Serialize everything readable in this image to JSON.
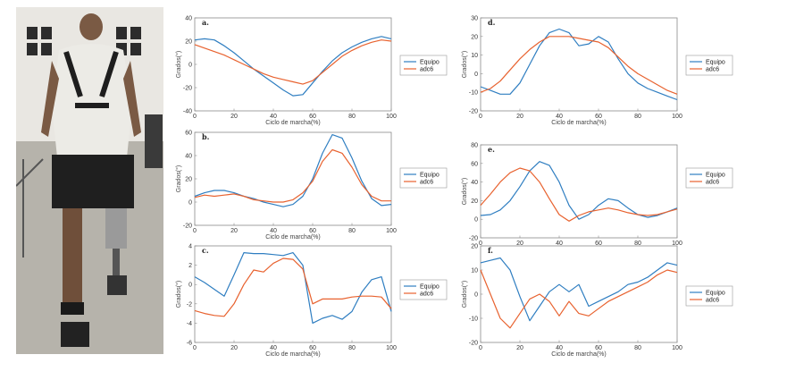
{
  "colors": {
    "equipo": "#2f7ec1",
    "adc6": "#e8622f",
    "axis": "#8a8a8a"
  },
  "photo": {
    "description_icon": "person-walking-with-prosthesis-photo"
  },
  "chart_data": [
    {
      "type": "line",
      "panel_label": "a.",
      "xlabel": "Ciclo de marcha(%)",
      "ylabel": "Grados(°)",
      "xlim": [
        0,
        100
      ],
      "ylim": [
        -40,
        40
      ],
      "xticks": [
        0,
        20,
        40,
        60,
        80,
        100
      ],
      "yticks": [
        -40,
        -20,
        0,
        20,
        40
      ],
      "legend": "right",
      "x": [
        0,
        5,
        10,
        15,
        20,
        25,
        30,
        35,
        40,
        45,
        50,
        55,
        60,
        65,
        70,
        75,
        80,
        85,
        90,
        95,
        100
      ],
      "series": [
        {
          "name": "Equipo",
          "values": [
            21,
            22,
            21,
            16,
            10,
            3,
            -4,
            -10,
            -16,
            -22,
            -27,
            -26,
            -16,
            -6,
            3,
            10,
            15,
            19,
            22,
            24,
            22
          ]
        },
        {
          "name": "adc6",
          "values": [
            17,
            14,
            11,
            8,
            4,
            0,
            -4,
            -8,
            -11,
            -13,
            -15,
            -17,
            -14,
            -7,
            0,
            7,
            12,
            16,
            19,
            21,
            20
          ]
        }
      ]
    },
    {
      "type": "line",
      "panel_label": "d.",
      "xlabel": "Ciclo de marcha(%)",
      "ylabel": "Grados(°)",
      "xlim": [
        0,
        100
      ],
      "ylim": [
        -20,
        30
      ],
      "xticks": [
        0,
        20,
        40,
        60,
        80,
        100
      ],
      "yticks": [
        -20,
        -10,
        0,
        10,
        20,
        30
      ],
      "legend": "right",
      "x": [
        0,
        5,
        10,
        15,
        20,
        25,
        30,
        35,
        40,
        45,
        50,
        55,
        60,
        65,
        70,
        75,
        80,
        85,
        90,
        95,
        100
      ],
      "series": [
        {
          "name": "Equipo",
          "values": [
            -7,
            -9,
            -11,
            -11,
            -5,
            5,
            15,
            22,
            24,
            22,
            15,
            16,
            20,
            17,
            8,
            0,
            -5,
            -8,
            -10,
            -12,
            -14
          ]
        },
        {
          "name": "adc6",
          "values": [
            -10,
            -8,
            -4,
            2,
            8,
            13,
            17,
            20,
            20,
            20,
            19,
            18,
            17,
            14,
            9,
            4,
            0,
            -3,
            -6,
            -9,
            -11
          ]
        }
      ]
    },
    {
      "type": "line",
      "panel_label": "b.",
      "xlabel": "Ciclo de marcha(%)",
      "ylabel": "Grados(°)",
      "xlim": [
        0,
        100
      ],
      "ylim": [
        -20,
        60
      ],
      "xticks": [
        0,
        20,
        40,
        60,
        80,
        100
      ],
      "yticks": [
        -20,
        0,
        20,
        40,
        60
      ],
      "legend": "right",
      "x": [
        0,
        5,
        10,
        15,
        20,
        25,
        30,
        35,
        40,
        45,
        50,
        55,
        60,
        65,
        70,
        75,
        80,
        85,
        90,
        95,
        100
      ],
      "series": [
        {
          "name": "Equipo",
          "values": [
            5,
            8,
            10,
            10,
            8,
            5,
            3,
            0,
            -2,
            -4,
            -2,
            5,
            20,
            42,
            58,
            55,
            38,
            18,
            3,
            -3,
            -2
          ]
        },
        {
          "name": "adc6",
          "values": [
            4,
            6,
            5,
            6,
            7,
            5,
            2,
            1,
            0,
            0,
            2,
            8,
            18,
            35,
            45,
            42,
            30,
            15,
            5,
            1,
            1
          ]
        }
      ]
    },
    {
      "type": "line",
      "panel_label": "e.",
      "xlabel": "Ciclo de marcha(%)",
      "ylabel": "Grados(°)",
      "xlim": [
        0,
        100
      ],
      "ylim": [
        -20,
        80
      ],
      "xticks": [
        0,
        20,
        40,
        60,
        80,
        100
      ],
      "yticks": [
        -20,
        0,
        20,
        40,
        60,
        80
      ],
      "legend": "right",
      "x": [
        0,
        5,
        10,
        15,
        20,
        25,
        30,
        35,
        40,
        45,
        50,
        55,
        60,
        65,
        70,
        75,
        80,
        85,
        90,
        95,
        100
      ],
      "series": [
        {
          "name": "Equipo",
          "values": [
            4,
            5,
            10,
            20,
            35,
            52,
            62,
            58,
            40,
            15,
            0,
            5,
            15,
            22,
            20,
            12,
            5,
            2,
            4,
            8,
            12
          ]
        },
        {
          "name": "adc6",
          "values": [
            15,
            27,
            40,
            50,
            55,
            52,
            40,
            22,
            5,
            -2,
            4,
            8,
            10,
            12,
            10,
            7,
            5,
            4,
            5,
            8,
            11
          ]
        }
      ]
    },
    {
      "type": "line",
      "panel_label": "c.",
      "xlabel": "Ciclo de marcha(%)",
      "ylabel": "Grados(°)",
      "xlim": [
        0,
        100
      ],
      "ylim": [
        -6,
        4
      ],
      "xticks": [
        0,
        20,
        40,
        60,
        80,
        100
      ],
      "yticks": [
        -6,
        -4,
        -2,
        0,
        2,
        4
      ],
      "legend": "right",
      "x": [
        0,
        5,
        10,
        15,
        20,
        25,
        30,
        35,
        40,
        45,
        50,
        55,
        60,
        65,
        70,
        75,
        80,
        85,
        90,
        95,
        100
      ],
      "series": [
        {
          "name": "Equipo",
          "values": [
            0.8,
            0.2,
            -0.5,
            -1.2,
            1.0,
            3.3,
            3.2,
            3.2,
            3.1,
            3.0,
            3.3,
            2.0,
            -4.0,
            -3.5,
            -3.2,
            -3.6,
            -2.8,
            -0.8,
            0.5,
            0.8,
            -2.8
          ]
        },
        {
          "name": "adc6",
          "values": [
            -2.7,
            -3.0,
            -3.2,
            -3.3,
            -2.0,
            0.0,
            1.5,
            1.3,
            2.2,
            2.7,
            2.6,
            1.6,
            -2.0,
            -1.5,
            -1.5,
            -1.5,
            -1.3,
            -1.2,
            -1.2,
            -1.3,
            -2.5
          ]
        }
      ]
    },
    {
      "type": "line",
      "panel_label": "f.",
      "xlabel": "Ciclo de marcha(%)",
      "ylabel": "Grados(°)",
      "xlim": [
        0,
        100
      ],
      "ylim": [
        -20,
        20
      ],
      "xticks": [
        0,
        20,
        40,
        60,
        80,
        100
      ],
      "yticks": [
        -20,
        -10,
        0,
        10,
        20
      ],
      "legend": "right",
      "x": [
        0,
        5,
        10,
        15,
        20,
        25,
        30,
        35,
        40,
        45,
        50,
        55,
        60,
        65,
        70,
        75,
        80,
        85,
        90,
        95,
        100
      ],
      "series": [
        {
          "name": "Equipo",
          "values": [
            13,
            14,
            15,
            10,
            -1,
            -11,
            -5,
            1,
            4,
            1,
            4,
            -5,
            -3,
            -1,
            1,
            4,
            5,
            7,
            10,
            13,
            12
          ]
        },
        {
          "name": "adc6",
          "values": [
            10,
            0,
            -10,
            -14,
            -8,
            -2,
            0,
            -3,
            -9,
            -3,
            -8,
            -9,
            -6,
            -3,
            -1,
            1,
            3,
            5,
            8,
            10,
            9
          ]
        }
      ]
    }
  ]
}
